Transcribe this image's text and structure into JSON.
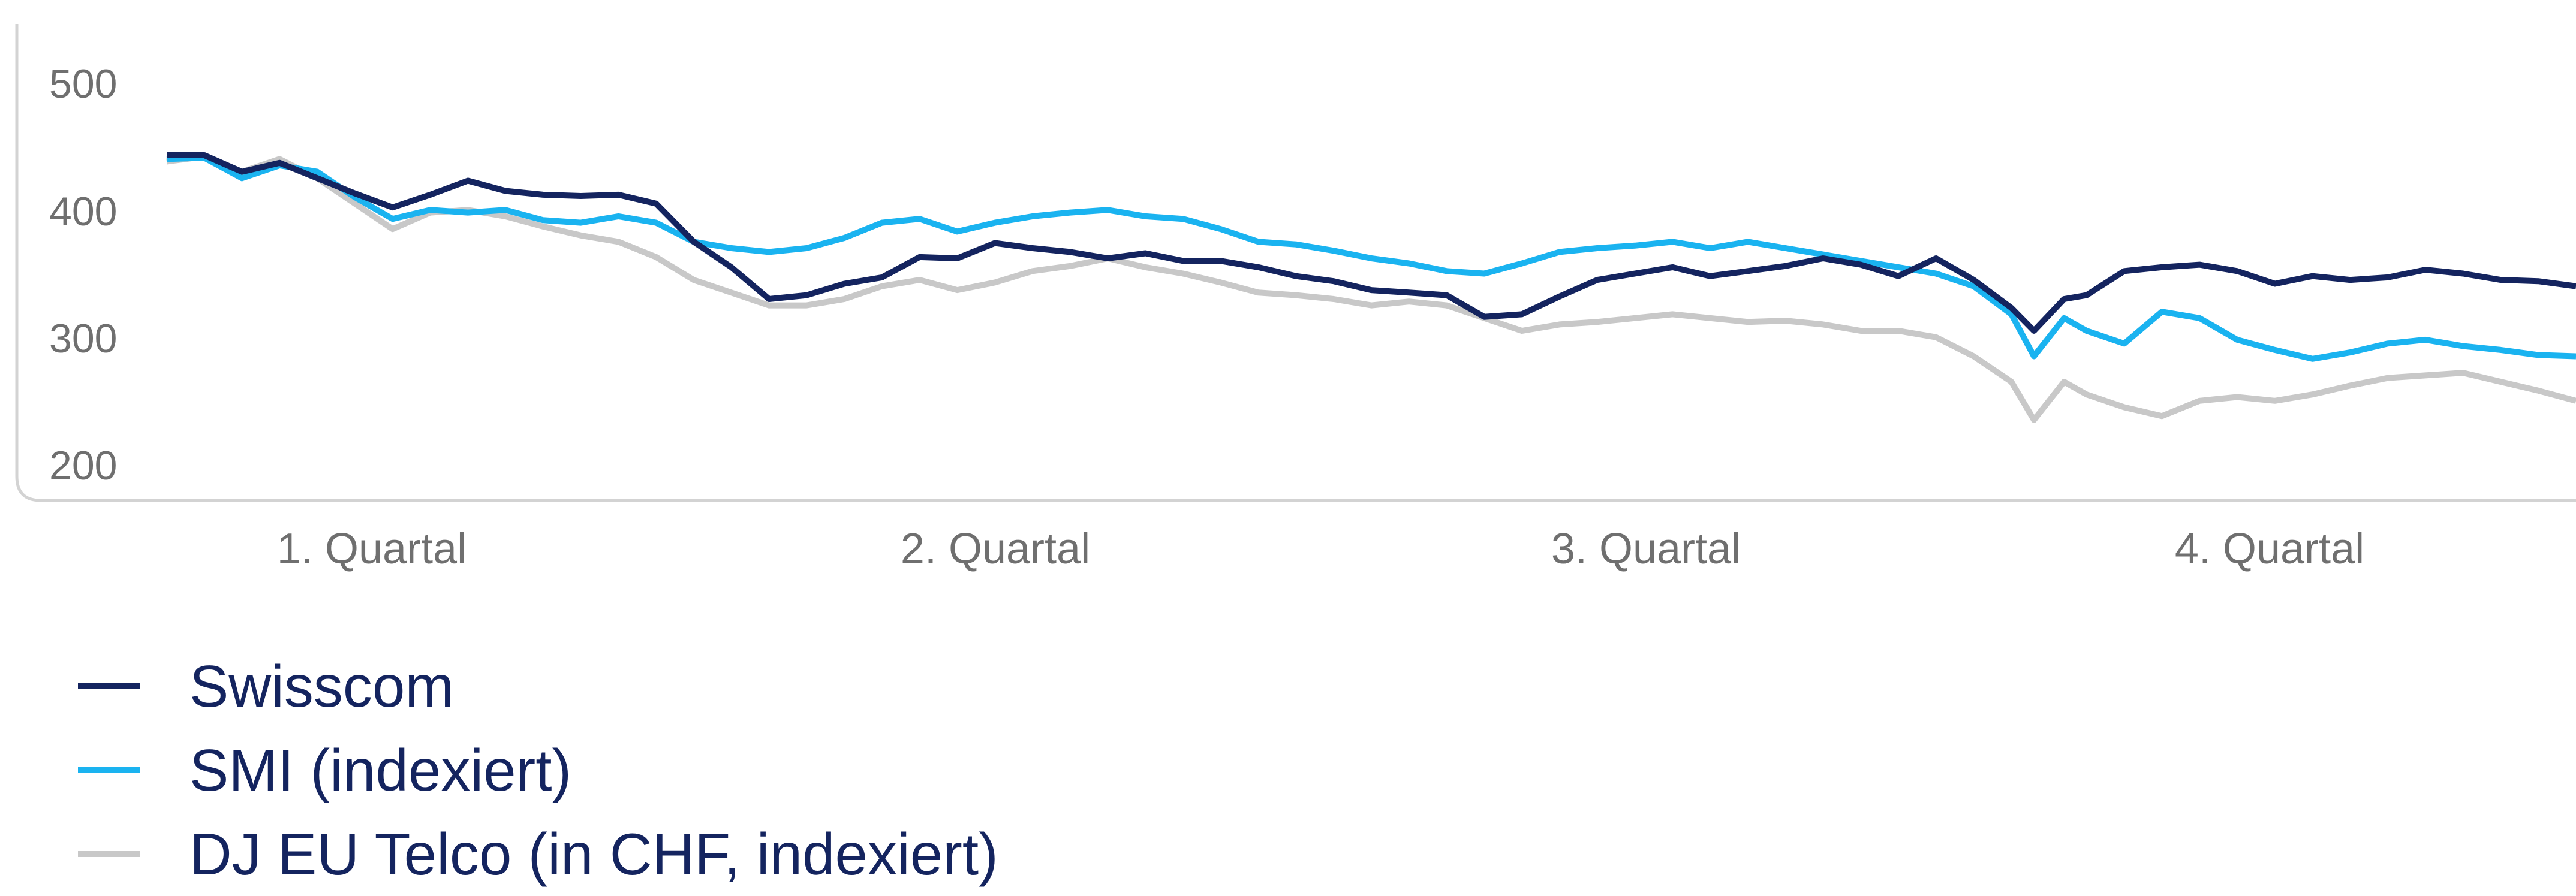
{
  "chart_data": {
    "type": "line",
    "title": "",
    "xlabel": "",
    "ylabel": "",
    "ylim": [
      200,
      500
    ],
    "yticks": [
      "500",
      "400",
      "300",
      "200"
    ],
    "xtick_labels": [
      "1. Quartal",
      "2. Quartal",
      "3. Quartal",
      "4. Quartal"
    ],
    "x_unit": "trading day index (approx. 252 days across four quarters)",
    "legend_position": "bottom-left",
    "grid": false,
    "series": [
      {
        "name": "Swisscom",
        "color": "#14245f",
        "points": [
          [
            0,
            443
          ],
          [
            5,
            443
          ],
          [
            10,
            430
          ],
          [
            15,
            437
          ],
          [
            20,
            425
          ],
          [
            25,
            413
          ],
          [
            30,
            402
          ],
          [
            35,
            412
          ],
          [
            40,
            423
          ],
          [
            45,
            415
          ],
          [
            50,
            412
          ],
          [
            55,
            411
          ],
          [
            60,
            412
          ],
          [
            65,
            405
          ],
          [
            70,
            375
          ],
          [
            75,
            355
          ],
          [
            80,
            330
          ],
          [
            85,
            333
          ],
          [
            90,
            342
          ],
          [
            95,
            347
          ],
          [
            100,
            363
          ],
          [
            105,
            362
          ],
          [
            110,
            374
          ],
          [
            115,
            370
          ],
          [
            120,
            367
          ],
          [
            125,
            362
          ],
          [
            130,
            366
          ],
          [
            135,
            360
          ],
          [
            140,
            360
          ],
          [
            145,
            355
          ],
          [
            150,
            348
          ],
          [
            155,
            344
          ],
          [
            160,
            337
          ],
          [
            165,
            335
          ],
          [
            170,
            333
          ],
          [
            175,
            316
          ],
          [
            180,
            318
          ],
          [
            185,
            332
          ],
          [
            190,
            345
          ],
          [
            195,
            350
          ],
          [
            200,
            355
          ],
          [
            205,
            348
          ],
          [
            210,
            352
          ],
          [
            215,
            356
          ],
          [
            220,
            362
          ],
          [
            225,
            357
          ],
          [
            230,
            348
          ],
          [
            235,
            362
          ],
          [
            240,
            345
          ],
          [
            245,
            323
          ],
          [
            248,
            305
          ],
          [
            252,
            330
          ],
          [
            255,
            333
          ],
          [
            260,
            352
          ],
          [
            265,
            355
          ],
          [
            270,
            357
          ],
          [
            275,
            352
          ],
          [
            280,
            342
          ],
          [
            285,
            348
          ],
          [
            290,
            345
          ],
          [
            295,
            347
          ],
          [
            300,
            353
          ],
          [
            305,
            350
          ],
          [
            310,
            345
          ],
          [
            315,
            344
          ],
          [
            320,
            340
          ]
        ]
      },
      {
        "name": "SMI (indexiert)",
        "color": "#1ab3f0",
        "points": [
          [
            0,
            440
          ],
          [
            5,
            441
          ],
          [
            10,
            425
          ],
          [
            15,
            435
          ],
          [
            20,
            430
          ],
          [
            25,
            410
          ],
          [
            30,
            393
          ],
          [
            35,
            400
          ],
          [
            40,
            398
          ],
          [
            45,
            400
          ],
          [
            50,
            392
          ],
          [
            55,
            390
          ],
          [
            60,
            395
          ],
          [
            65,
            390
          ],
          [
            70,
            375
          ],
          [
            75,
            370
          ],
          [
            80,
            367
          ],
          [
            85,
            370
          ],
          [
            90,
            378
          ],
          [
            95,
            390
          ],
          [
            100,
            393
          ],
          [
            105,
            383
          ],
          [
            110,
            390
          ],
          [
            115,
            395
          ],
          [
            120,
            398
          ],
          [
            125,
            400
          ],
          [
            130,
            395
          ],
          [
            135,
            393
          ],
          [
            140,
            385
          ],
          [
            145,
            375
          ],
          [
            150,
            373
          ],
          [
            155,
            368
          ],
          [
            160,
            362
          ],
          [
            165,
            358
          ],
          [
            170,
            352
          ],
          [
            175,
            350
          ],
          [
            180,
            358
          ],
          [
            185,
            367
          ],
          [
            190,
            370
          ],
          [
            195,
            372
          ],
          [
            200,
            375
          ],
          [
            205,
            370
          ],
          [
            210,
            375
          ],
          [
            215,
            370
          ],
          [
            220,
            365
          ],
          [
            225,
            360
          ],
          [
            230,
            355
          ],
          [
            235,
            350
          ],
          [
            240,
            340
          ],
          [
            245,
            318
          ],
          [
            248,
            285
          ],
          [
            252,
            315
          ],
          [
            255,
            305
          ],
          [
            260,
            295
          ],
          [
            265,
            320
          ],
          [
            270,
            315
          ],
          [
            275,
            298
          ],
          [
            280,
            290
          ],
          [
            285,
            283
          ],
          [
            290,
            288
          ],
          [
            295,
            295
          ],
          [
            300,
            298
          ],
          [
            305,
            293
          ],
          [
            310,
            290
          ],
          [
            315,
            286
          ],
          [
            320,
            285
          ]
        ]
      },
      {
        "name": "DJ EU Telco (in CHF, indexiert)",
        "color": "#c8c8c8",
        "points": [
          [
            0,
            438
          ],
          [
            5,
            442
          ],
          [
            10,
            430
          ],
          [
            15,
            440
          ],
          [
            20,
            425
          ],
          [
            25,
            405
          ],
          [
            30,
            385
          ],
          [
            35,
            398
          ],
          [
            40,
            400
          ],
          [
            45,
            395
          ],
          [
            50,
            387
          ],
          [
            55,
            380
          ],
          [
            60,
            375
          ],
          [
            65,
            363
          ],
          [
            70,
            345
          ],
          [
            75,
            335
          ],
          [
            80,
            325
          ],
          [
            85,
            325
          ],
          [
            90,
            330
          ],
          [
            95,
            340
          ],
          [
            100,
            345
          ],
          [
            105,
            337
          ],
          [
            110,
            343
          ],
          [
            115,
            352
          ],
          [
            120,
            356
          ],
          [
            125,
            362
          ],
          [
            130,
            355
          ],
          [
            135,
            350
          ],
          [
            140,
            343
          ],
          [
            145,
            335
          ],
          [
            150,
            333
          ],
          [
            155,
            330
          ],
          [
            160,
            325
          ],
          [
            165,
            328
          ],
          [
            170,
            325
          ],
          [
            175,
            315
          ],
          [
            180,
            305
          ],
          [
            185,
            310
          ],
          [
            190,
            312
          ],
          [
            195,
            315
          ],
          [
            200,
            318
          ],
          [
            205,
            315
          ],
          [
            210,
            312
          ],
          [
            215,
            313
          ],
          [
            220,
            310
          ],
          [
            225,
            305
          ],
          [
            230,
            305
          ],
          [
            235,
            300
          ],
          [
            240,
            285
          ],
          [
            245,
            265
          ],
          [
            248,
            235
          ],
          [
            252,
            265
          ],
          [
            255,
            255
          ],
          [
            260,
            245
          ],
          [
            265,
            238
          ],
          [
            270,
            250
          ],
          [
            275,
            253
          ],
          [
            280,
            250
          ],
          [
            285,
            255
          ],
          [
            290,
            262
          ],
          [
            295,
            268
          ],
          [
            300,
            270
          ],
          [
            305,
            272
          ],
          [
            310,
            265
          ],
          [
            315,
            258
          ],
          [
            320,
            250
          ]
        ]
      }
    ]
  }
}
